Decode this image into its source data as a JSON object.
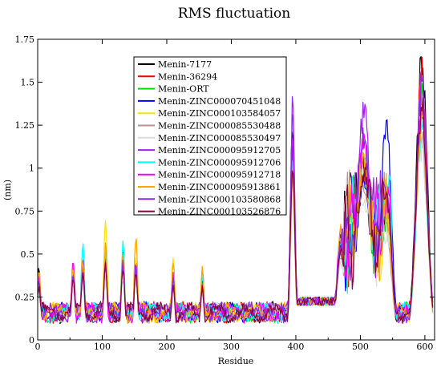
{
  "chart_data": {
    "type": "line",
    "title": "RMS fluctuation",
    "xlabel": "Residue",
    "ylabel": "(nm)",
    "xlim": [
      0,
      615
    ],
    "ylim": [
      0,
      1.75
    ],
    "xticks": [
      0,
      100,
      200,
      300,
      400,
      500,
      600
    ],
    "xtick_labels": [
      "0",
      "100",
      "200",
      "300",
      "400",
      "500",
      "600"
    ],
    "yticks": [
      0,
      0.25,
      0.5,
      0.75,
      1,
      1.25,
      1.5,
      1.75
    ],
    "ytick_labels": [
      "0",
      "0.25",
      "0.5",
      "0.75",
      "1",
      "1.25",
      "1.5",
      "1.75"
    ],
    "grid": false,
    "legend_position": "upper-left-inside",
    "series": [
      {
        "name": "Menin-7177",
        "color": "#000000",
        "peaks": [
          {
            "x": 2,
            "y": 0.45
          },
          {
            "x": 55,
            "y": 0.45
          },
          {
            "x": 70,
            "y": 0.48
          },
          {
            "x": 105,
            "y": 0.55
          },
          {
            "x": 132,
            "y": 0.52
          },
          {
            "x": 152,
            "y": 0.48
          },
          {
            "x": 210,
            "y": 0.42
          },
          {
            "x": 255,
            "y": 0.38
          },
          {
            "x": 395,
            "y": 1.3
          },
          {
            "x": 470,
            "y": 0.62
          },
          {
            "x": 505,
            "y": 1.1
          },
          {
            "x": 540,
            "y": 0.8
          },
          {
            "x": 595,
            "y": 1.75
          }
        ]
      },
      {
        "name": "Menin-36294",
        "color": "#ff0000",
        "peaks": [
          {
            "x": 2,
            "y": 0.4
          },
          {
            "x": 55,
            "y": 0.43
          },
          {
            "x": 70,
            "y": 0.42
          },
          {
            "x": 105,
            "y": 0.5
          },
          {
            "x": 132,
            "y": 0.5
          },
          {
            "x": 152,
            "y": 0.47
          },
          {
            "x": 210,
            "y": 0.44
          },
          {
            "x": 255,
            "y": 0.42
          },
          {
            "x": 395,
            "y": 1.25
          },
          {
            "x": 470,
            "y": 0.6
          },
          {
            "x": 505,
            "y": 1.15
          },
          {
            "x": 540,
            "y": 0.85
          },
          {
            "x": 595,
            "y": 1.65
          }
        ]
      },
      {
        "name": "Menin-ORT",
        "color": "#00e000",
        "peaks": [
          {
            "x": 2,
            "y": 0.38
          },
          {
            "x": 55,
            "y": 0.42
          },
          {
            "x": 70,
            "y": 0.45
          },
          {
            "x": 105,
            "y": 0.52
          },
          {
            "x": 132,
            "y": 0.48
          },
          {
            "x": 152,
            "y": 0.45
          },
          {
            "x": 210,
            "y": 0.4
          },
          {
            "x": 255,
            "y": 0.36
          },
          {
            "x": 395,
            "y": 1.2
          },
          {
            "x": 470,
            "y": 0.55
          },
          {
            "x": 505,
            "y": 1.05
          },
          {
            "x": 540,
            "y": 0.75
          },
          {
            "x": 595,
            "y": 1.55
          }
        ]
      },
      {
        "name": "Menin-ZINC000070451048",
        "color": "#0000ff",
        "peaks": [
          {
            "x": 2,
            "y": 0.36
          },
          {
            "x": 55,
            "y": 0.4
          },
          {
            "x": 70,
            "y": 0.46
          },
          {
            "x": 105,
            "y": 0.56
          },
          {
            "x": 132,
            "y": 0.5
          },
          {
            "x": 152,
            "y": 0.44
          },
          {
            "x": 210,
            "y": 0.38
          },
          {
            "x": 255,
            "y": 0.34
          },
          {
            "x": 395,
            "y": 1.28
          },
          {
            "x": 470,
            "y": 0.58
          },
          {
            "x": 505,
            "y": 1.0
          },
          {
            "x": 540,
            "y": 1.38
          },
          {
            "x": 595,
            "y": 1.4
          }
        ]
      },
      {
        "name": "Menin-ZINC000103584057",
        "color": "#ffe000",
        "peaks": [
          {
            "x": 2,
            "y": 0.42
          },
          {
            "x": 55,
            "y": 0.46
          },
          {
            "x": 70,
            "y": 0.5
          },
          {
            "x": 105,
            "y": 0.74
          },
          {
            "x": 132,
            "y": 0.55
          },
          {
            "x": 152,
            "y": 0.5
          },
          {
            "x": 210,
            "y": 0.52
          },
          {
            "x": 255,
            "y": 0.4
          },
          {
            "x": 395,
            "y": 1.1
          },
          {
            "x": 470,
            "y": 0.65
          },
          {
            "x": 505,
            "y": 1.2
          },
          {
            "x": 540,
            "y": 0.7
          },
          {
            "x": 595,
            "y": 1.45
          }
        ]
      },
      {
        "name": "Menin-ZINC000085530488",
        "color": "#bc8f8f",
        "peaks": [
          {
            "x": 2,
            "y": 0.35
          },
          {
            "x": 55,
            "y": 0.38
          },
          {
            "x": 70,
            "y": 0.4
          },
          {
            "x": 105,
            "y": 0.48
          },
          {
            "x": 132,
            "y": 0.45
          },
          {
            "x": 152,
            "y": 0.42
          },
          {
            "x": 210,
            "y": 0.36
          },
          {
            "x": 255,
            "y": 0.32
          },
          {
            "x": 395,
            "y": 1.0
          },
          {
            "x": 470,
            "y": 0.52
          },
          {
            "x": 505,
            "y": 1.0
          },
          {
            "x": 540,
            "y": 0.72
          },
          {
            "x": 595,
            "y": 1.3
          }
        ]
      },
      {
        "name": "Menin-ZINC000085530497",
        "color": "#dcdcdc",
        "peaks": [
          {
            "x": 2,
            "y": 0.3
          },
          {
            "x": 55,
            "y": 0.34
          },
          {
            "x": 70,
            "y": 0.36
          },
          {
            "x": 105,
            "y": 0.42
          },
          {
            "x": 132,
            "y": 0.4
          },
          {
            "x": 152,
            "y": 0.38
          },
          {
            "x": 210,
            "y": 0.32
          },
          {
            "x": 255,
            "y": 0.3
          },
          {
            "x": 395,
            "y": 0.9
          },
          {
            "x": 470,
            "y": 0.48
          },
          {
            "x": 505,
            "y": 0.9
          },
          {
            "x": 540,
            "y": 0.65
          },
          {
            "x": 595,
            "y": 1.2
          }
        ]
      },
      {
        "name": "Menin-ZINC000095912705",
        "color": "#a020f0",
        "peaks": [
          {
            "x": 2,
            "y": 0.34
          },
          {
            "x": 55,
            "y": 0.4
          },
          {
            "x": 70,
            "y": 0.42
          },
          {
            "x": 105,
            "y": 0.5
          },
          {
            "x": 132,
            "y": 0.48
          },
          {
            "x": 152,
            "y": 0.44
          },
          {
            "x": 210,
            "y": 0.38
          },
          {
            "x": 255,
            "y": 0.34
          },
          {
            "x": 395,
            "y": 1.44
          },
          {
            "x": 470,
            "y": 0.6
          },
          {
            "x": 505,
            "y": 1.42
          },
          {
            "x": 540,
            "y": 0.9
          },
          {
            "x": 595,
            "y": 1.6
          }
        ]
      },
      {
        "name": "Menin-ZINC000095912706",
        "color": "#00ffff",
        "peaks": [
          {
            "x": 2,
            "y": 0.4
          },
          {
            "x": 55,
            "y": 0.45
          },
          {
            "x": 70,
            "y": 0.6
          },
          {
            "x": 105,
            "y": 0.55
          },
          {
            "x": 132,
            "y": 0.6
          },
          {
            "x": 152,
            "y": 0.5
          },
          {
            "x": 210,
            "y": 0.42
          },
          {
            "x": 255,
            "y": 0.38
          },
          {
            "x": 395,
            "y": 1.15
          },
          {
            "x": 470,
            "y": 0.62
          },
          {
            "x": 505,
            "y": 1.15
          },
          {
            "x": 540,
            "y": 0.95
          },
          {
            "x": 595,
            "y": 1.35
          }
        ]
      },
      {
        "name": "Menin-ZINC000095912718",
        "color": "#ff00ff",
        "peaks": [
          {
            "x": 2,
            "y": 0.38
          },
          {
            "x": 55,
            "y": 0.5
          },
          {
            "x": 70,
            "y": 0.48
          },
          {
            "x": 105,
            "y": 0.52
          },
          {
            "x": 132,
            "y": 0.5
          },
          {
            "x": 152,
            "y": 0.46
          },
          {
            "x": 210,
            "y": 0.4
          },
          {
            "x": 255,
            "y": 0.36
          },
          {
            "x": 395,
            "y": 1.2
          },
          {
            "x": 470,
            "y": 0.7
          },
          {
            "x": 505,
            "y": 1.25
          },
          {
            "x": 540,
            "y": 0.85
          },
          {
            "x": 595,
            "y": 1.5
          }
        ]
      },
      {
        "name": "Menin-ZINC000095913861",
        "color": "#ffa500",
        "peaks": [
          {
            "x": 2,
            "y": 0.44
          },
          {
            "x": 55,
            "y": 0.46
          },
          {
            "x": 70,
            "y": 0.5
          },
          {
            "x": 105,
            "y": 0.6
          },
          {
            "x": 132,
            "y": 0.55
          },
          {
            "x": 152,
            "y": 0.64
          },
          {
            "x": 210,
            "y": 0.5
          },
          {
            "x": 255,
            "y": 0.44
          },
          {
            "x": 395,
            "y": 1.05
          },
          {
            "x": 470,
            "y": 0.68
          },
          {
            "x": 505,
            "y": 1.1
          },
          {
            "x": 540,
            "y": 0.78
          },
          {
            "x": 595,
            "y": 1.4
          }
        ]
      },
      {
        "name": "Menin-ZINC000103580868",
        "color": "#8a2be2",
        "peaks": [
          {
            "x": 2,
            "y": 0.36
          },
          {
            "x": 55,
            "y": 0.42
          },
          {
            "x": 70,
            "y": 0.44
          },
          {
            "x": 105,
            "y": 0.5
          },
          {
            "x": 132,
            "y": 0.48
          },
          {
            "x": 152,
            "y": 0.45
          },
          {
            "x": 210,
            "y": 0.38
          },
          {
            "x": 255,
            "y": 0.34
          },
          {
            "x": 395,
            "y": 1.35
          },
          {
            "x": 470,
            "y": 0.64
          },
          {
            "x": 505,
            "y": 1.3
          },
          {
            "x": 540,
            "y": 1.0
          },
          {
            "x": 595,
            "y": 1.58
          }
        ]
      },
      {
        "name": "Menin-ZINC000103526876",
        "color": "#8b0040",
        "peaks": [
          {
            "x": 2,
            "y": 0.34
          },
          {
            "x": 55,
            "y": 0.4
          },
          {
            "x": 70,
            "y": 0.42
          },
          {
            "x": 105,
            "y": 0.48
          },
          {
            "x": 132,
            "y": 0.46
          },
          {
            "x": 152,
            "y": 0.42
          },
          {
            "x": 210,
            "y": 0.36
          },
          {
            "x": 255,
            "y": 0.32
          },
          {
            "x": 395,
            "y": 1.1
          },
          {
            "x": 470,
            "y": 0.56
          },
          {
            "x": 505,
            "y": 1.05
          },
          {
            "x": 540,
            "y": 0.92
          },
          {
            "x": 595,
            "y": 1.45
          }
        ]
      }
    ]
  }
}
